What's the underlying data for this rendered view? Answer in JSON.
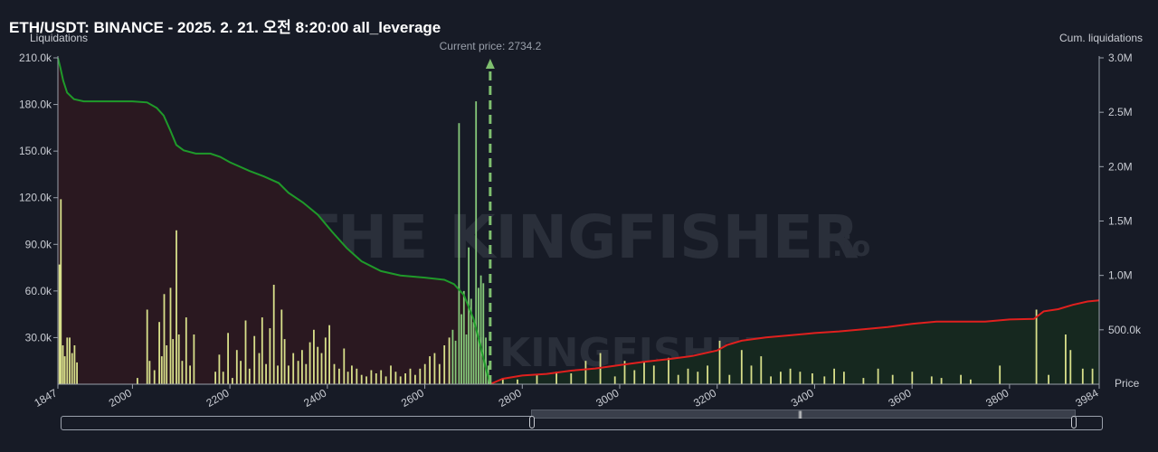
{
  "title": "ETH/USDT: BINANCE - 2025. 2. 21. 오전 8:20:00 all_leverage",
  "left_axis_title": "Liquidations",
  "right_axis_title": "Cum. liquidations",
  "price_label": "Price",
  "current_price_label": "Current price: 2734.2",
  "watermark": "THE KINGFISHER",
  "watermark_suffix": ".io",
  "colors": {
    "background": "#171b26",
    "bars": "#d8df8a",
    "bars_near": "#86c97a",
    "short_line": "#1f9a2a",
    "long_line": "#e0201e",
    "short_fill": "#2a1820",
    "long_fill": "#16281f",
    "current_price": "#7fbf6f"
  },
  "chart_data": {
    "type": "bar",
    "title": "ETH/USDT: BINANCE - 2025. 2. 21. 오전 8:20:00 all_leverage",
    "xlabel": "Price",
    "ylabel": "Liquidations",
    "y2label": "Cum. liquidations",
    "xlim": [
      1847,
      3984
    ],
    "ylim": [
      0,
      210000
    ],
    "y2lim": [
      0,
      3000000
    ],
    "x_ticks": [
      "1847",
      "2000",
      "2200",
      "2400",
      "2600",
      "2800",
      "3000",
      "3200",
      "3400",
      "3600",
      "3800",
      "3984"
    ],
    "y_ticks": [
      "30.0k",
      "60.0k",
      "90.0k",
      "120.0k",
      "150.0k",
      "180.0k",
      "210.0k"
    ],
    "y2_ticks": [
      "500.0k",
      "1.0M",
      "1.5M",
      "2.0M",
      "2.5M",
      "3.0M"
    ],
    "current_price": 2734.2,
    "grid": false,
    "bars": [
      {
        "x": 1850,
        "v": 77000
      },
      {
        "x": 1853,
        "v": 119000
      },
      {
        "x": 1857,
        "v": 25000
      },
      {
        "x": 1861,
        "v": 18000
      },
      {
        "x": 1866,
        "v": 30000
      },
      {
        "x": 1871,
        "v": 30000
      },
      {
        "x": 1876,
        "v": 20000
      },
      {
        "x": 1881,
        "v": 25000
      },
      {
        "x": 1886,
        "v": 14000
      },
      {
        "x": 2010,
        "v": 4000
      },
      {
        "x": 2030,
        "v": 48000
      },
      {
        "x": 2035,
        "v": 15000
      },
      {
        "x": 2045,
        "v": 9000
      },
      {
        "x": 2055,
        "v": 40000
      },
      {
        "x": 2060,
        "v": 18000
      },
      {
        "x": 2065,
        "v": 58000
      },
      {
        "x": 2070,
        "v": 25000
      },
      {
        "x": 2078,
        "v": 62000
      },
      {
        "x": 2083,
        "v": 29000
      },
      {
        "x": 2090,
        "v": 99000
      },
      {
        "x": 2095,
        "v": 32000
      },
      {
        "x": 2102,
        "v": 15000
      },
      {
        "x": 2110,
        "v": 43000
      },
      {
        "x": 2118,
        "v": 12000
      },
      {
        "x": 2126,
        "v": 32000
      },
      {
        "x": 2170,
        "v": 8000
      },
      {
        "x": 2178,
        "v": 19000
      },
      {
        "x": 2186,
        "v": 8000
      },
      {
        "x": 2196,
        "v": 33000
      },
      {
        "x": 2205,
        "v": 4000
      },
      {
        "x": 2214,
        "v": 22000
      },
      {
        "x": 2222,
        "v": 15000
      },
      {
        "x": 2232,
        "v": 41000
      },
      {
        "x": 2240,
        "v": 10000
      },
      {
        "x": 2250,
        "v": 31000
      },
      {
        "x": 2260,
        "v": 20000
      },
      {
        "x": 2266,
        "v": 43000
      },
      {
        "x": 2274,
        "v": 13000
      },
      {
        "x": 2282,
        "v": 36000
      },
      {
        "x": 2290,
        "v": 64000
      },
      {
        "x": 2298,
        "v": 12000
      },
      {
        "x": 2306,
        "v": 48000
      },
      {
        "x": 2312,
        "v": 29000
      },
      {
        "x": 2320,
        "v": 12000
      },
      {
        "x": 2330,
        "v": 20000
      },
      {
        "x": 2340,
        "v": 15000
      },
      {
        "x": 2348,
        "v": 22000
      },
      {
        "x": 2356,
        "v": 13000
      },
      {
        "x": 2364,
        "v": 27000
      },
      {
        "x": 2372,
        "v": 35000
      },
      {
        "x": 2380,
        "v": 24000
      },
      {
        "x": 2388,
        "v": 20000
      },
      {
        "x": 2396,
        "v": 30000
      },
      {
        "x": 2404,
        "v": 38000
      },
      {
        "x": 2414,
        "v": 13000
      },
      {
        "x": 2424,
        "v": 10000
      },
      {
        "x": 2434,
        "v": 23000
      },
      {
        "x": 2442,
        "v": 8000
      },
      {
        "x": 2450,
        "v": 12000
      },
      {
        "x": 2460,
        "v": 10000
      },
      {
        "x": 2470,
        "v": 6000
      },
      {
        "x": 2480,
        "v": 5000
      },
      {
        "x": 2490,
        "v": 9000
      },
      {
        "x": 2500,
        "v": 7000
      },
      {
        "x": 2510,
        "v": 9000
      },
      {
        "x": 2520,
        "v": 5000
      },
      {
        "x": 2530,
        "v": 12000
      },
      {
        "x": 2540,
        "v": 8000
      },
      {
        "x": 2550,
        "v": 5000
      },
      {
        "x": 2560,
        "v": 7000
      },
      {
        "x": 2570,
        "v": 10000
      },
      {
        "x": 2580,
        "v": 6000
      },
      {
        "x": 2590,
        "v": 10000
      },
      {
        "x": 2600,
        "v": 13000
      },
      {
        "x": 2610,
        "v": 18000
      },
      {
        "x": 2620,
        "v": 20000
      },
      {
        "x": 2630,
        "v": 13000
      },
      {
        "x": 2640,
        "v": 25000
      },
      {
        "x": 2650,
        "v": 30000
      },
      {
        "x": 2657,
        "v": 35000
      },
      {
        "x": 2663,
        "v": 28000
      },
      {
        "x": 2670,
        "v": 168000
      },
      {
        "x": 2675,
        "v": 45000
      },
      {
        "x": 2680,
        "v": 60000
      },
      {
        "x": 2685,
        "v": 32000
      },
      {
        "x": 2690,
        "v": 88000
      },
      {
        "x": 2695,
        "v": 55000
      },
      {
        "x": 2700,
        "v": 40000
      },
      {
        "x": 2705,
        "v": 182000
      },
      {
        "x": 2710,
        "v": 62000
      },
      {
        "x": 2715,
        "v": 70000
      },
      {
        "x": 2720,
        "v": 65000
      },
      {
        "x": 2725,
        "v": 30000
      },
      {
        "x": 2730,
        "v": 12000
      },
      {
        "x": 2760,
        "v": 4000
      },
      {
        "x": 2790,
        "v": 3000
      },
      {
        "x": 2830,
        "v": 6000
      },
      {
        "x": 2870,
        "v": 8000
      },
      {
        "x": 2900,
        "v": 7000
      },
      {
        "x": 2930,
        "v": 15000
      },
      {
        "x": 2960,
        "v": 20000
      },
      {
        "x": 2990,
        "v": 5000
      },
      {
        "x": 3010,
        "v": 15000
      },
      {
        "x": 3030,
        "v": 9000
      },
      {
        "x": 3050,
        "v": 14000
      },
      {
        "x": 3070,
        "v": 12000
      },
      {
        "x": 3100,
        "v": 17000
      },
      {
        "x": 3120,
        "v": 6000
      },
      {
        "x": 3140,
        "v": 10000
      },
      {
        "x": 3160,
        "v": 8000
      },
      {
        "x": 3180,
        "v": 12000
      },
      {
        "x": 3205,
        "v": 28000
      },
      {
        "x": 3225,
        "v": 6000
      },
      {
        "x": 3250,
        "v": 22000
      },
      {
        "x": 3270,
        "v": 12000
      },
      {
        "x": 3290,
        "v": 18000
      },
      {
        "x": 3310,
        "v": 5000
      },
      {
        "x": 3330,
        "v": 8000
      },
      {
        "x": 3350,
        "v": 10000
      },
      {
        "x": 3370,
        "v": 8000
      },
      {
        "x": 3395,
        "v": 7000
      },
      {
        "x": 3420,
        "v": 5000
      },
      {
        "x": 3440,
        "v": 10000
      },
      {
        "x": 3460,
        "v": 8000
      },
      {
        "x": 3500,
        "v": 4000
      },
      {
        "x": 3530,
        "v": 10000
      },
      {
        "x": 3560,
        "v": 6000
      },
      {
        "x": 3600,
        "v": 8000
      },
      {
        "x": 3640,
        "v": 5000
      },
      {
        "x": 3660,
        "v": 4000
      },
      {
        "x": 3700,
        "v": 6000
      },
      {
        "x": 3720,
        "v": 3000
      },
      {
        "x": 3780,
        "v": 12000
      },
      {
        "x": 3855,
        "v": 48000
      },
      {
        "x": 3880,
        "v": 6000
      },
      {
        "x": 3915,
        "v": 32000
      },
      {
        "x": 3925,
        "v": 22000
      },
      {
        "x": 3950,
        "v": 10000
      },
      {
        "x": 3970,
        "v": 10000
      }
    ],
    "series": [
      {
        "name": "short",
        "points": [
          [
            1847,
            3000000
          ],
          [
            1852,
            2910000
          ],
          [
            1858,
            2790000
          ],
          [
            1866,
            2680000
          ],
          [
            1880,
            2620000
          ],
          [
            1900,
            2600000
          ],
          [
            2000,
            2600000
          ],
          [
            2030,
            2590000
          ],
          [
            2050,
            2540000
          ],
          [
            2064,
            2470000
          ],
          [
            2078,
            2330000
          ],
          [
            2090,
            2200000
          ],
          [
            2105,
            2150000
          ],
          [
            2130,
            2120000
          ],
          [
            2160,
            2120000
          ],
          [
            2180,
            2090000
          ],
          [
            2200,
            2040000
          ],
          [
            2240,
            1960000
          ],
          [
            2270,
            1910000
          ],
          [
            2300,
            1850000
          ],
          [
            2320,
            1760000
          ],
          [
            2350,
            1670000
          ],
          [
            2380,
            1560000
          ],
          [
            2410,
            1400000
          ],
          [
            2440,
            1250000
          ],
          [
            2470,
            1130000
          ],
          [
            2510,
            1040000
          ],
          [
            2550,
            1000000
          ],
          [
            2600,
            980000
          ],
          [
            2640,
            960000
          ],
          [
            2660,
            920000
          ],
          [
            2680,
            820000
          ],
          [
            2700,
            600000
          ],
          [
            2715,
            340000
          ],
          [
            2725,
            150000
          ],
          [
            2734,
            0
          ]
        ]
      },
      {
        "name": "long",
        "points": [
          [
            2734,
            0
          ],
          [
            2760,
            50000
          ],
          [
            2800,
            80000
          ],
          [
            2850,
            95000
          ],
          [
            2900,
            125000
          ],
          [
            2950,
            145000
          ],
          [
            3000,
            175000
          ],
          [
            3050,
            205000
          ],
          [
            3100,
            230000
          ],
          [
            3150,
            260000
          ],
          [
            3200,
            310000
          ],
          [
            3220,
            360000
          ],
          [
            3250,
            400000
          ],
          [
            3300,
            430000
          ],
          [
            3350,
            450000
          ],
          [
            3400,
            470000
          ],
          [
            3450,
            485000
          ],
          [
            3500,
            505000
          ],
          [
            3550,
            525000
          ],
          [
            3600,
            555000
          ],
          [
            3650,
            575000
          ],
          [
            3700,
            575000
          ],
          [
            3750,
            575000
          ],
          [
            3800,
            595000
          ],
          [
            3850,
            600000
          ],
          [
            3870,
            670000
          ],
          [
            3900,
            690000
          ],
          [
            3930,
            730000
          ],
          [
            3960,
            760000
          ],
          [
            3984,
            770000
          ]
        ]
      }
    ]
  }
}
